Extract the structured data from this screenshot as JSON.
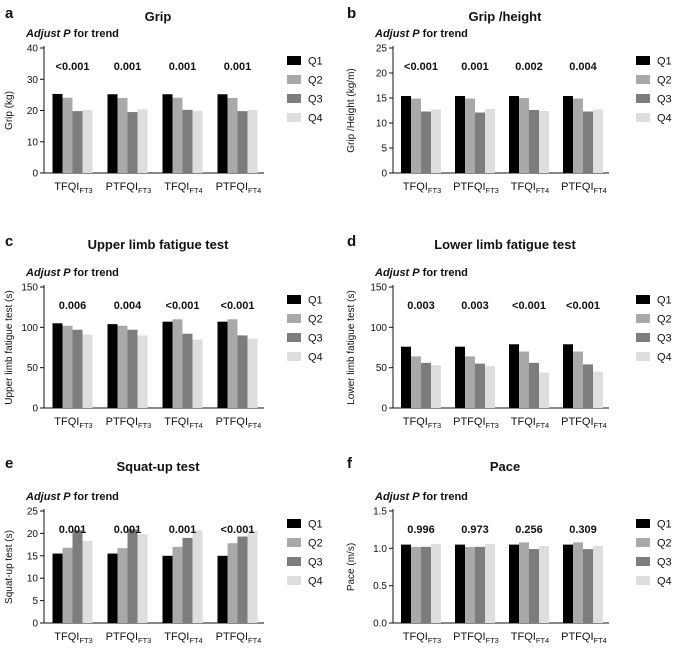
{
  "adjust_text": {
    "prefix": "Adjust",
    "p": "P",
    "suffix": "for trend"
  },
  "legend": {
    "labels": [
      "Q1",
      "Q2",
      "Q3",
      "Q4"
    ],
    "colors": [
      "#000000",
      "#a9a9a9",
      "#7d7d7d",
      "#dedede"
    ]
  },
  "chart_data": [
    {
      "id": "a",
      "letter": "a",
      "type": "bar",
      "title": "Grip",
      "ylabel": "Grip (kg)",
      "ylim": [
        0,
        40
      ],
      "yticks": [
        0,
        10,
        20,
        30,
        40
      ],
      "categories": [
        {
          "main": "TFQI",
          "sub": "FT3"
        },
        {
          "main": "PTFQI",
          "sub": "FT3"
        },
        {
          "main": "TFQI",
          "sub": "FT4"
        },
        {
          "main": "PTFQI",
          "sub": "FT4"
        }
      ],
      "p_values": [
        "<0.001",
        "0.001",
        "0.001",
        "0.001"
      ],
      "series": [
        {
          "name": "Q1",
          "values": [
            25.3,
            25.2,
            25.2,
            25.2
          ]
        },
        {
          "name": "Q2",
          "values": [
            24.1,
            24.0,
            24.1,
            24.0
          ]
        },
        {
          "name": "Q3",
          "values": [
            19.8,
            19.5,
            20.2,
            19.8
          ]
        },
        {
          "name": "Q4",
          "values": [
            20.2,
            20.4,
            19.9,
            20.1
          ]
        }
      ]
    },
    {
      "id": "b",
      "letter": "b",
      "type": "bar",
      "title": "Grip /height",
      "ylabel": "Grip /Height (kg/m)",
      "ylim": [
        0,
        25
      ],
      "yticks": [
        0,
        5,
        10,
        15,
        20,
        25
      ],
      "categories": [
        {
          "main": "TFQI",
          "sub": "FT3"
        },
        {
          "main": "PTFQI",
          "sub": "FT3"
        },
        {
          "main": "TFQI",
          "sub": "FT4"
        },
        {
          "main": "PTFQI",
          "sub": "FT4"
        }
      ],
      "p_values": [
        "<0.001",
        "0.001",
        "0.002",
        "0.004"
      ],
      "series": [
        {
          "name": "Q1",
          "values": [
            15.4,
            15.4,
            15.4,
            15.4
          ]
        },
        {
          "name": "Q2",
          "values": [
            14.9,
            14.9,
            15.0,
            14.9
          ]
        },
        {
          "name": "Q3",
          "values": [
            12.3,
            12.1,
            12.6,
            12.3
          ]
        },
        {
          "name": "Q4",
          "values": [
            12.7,
            12.8,
            12.4,
            12.7
          ]
        }
      ]
    },
    {
      "id": "c",
      "letter": "c",
      "type": "bar",
      "title": "Upper limb fatigue test",
      "ylabel": "Upper limb fatigue test (s)",
      "ylim": [
        0,
        150
      ],
      "yticks": [
        0,
        50,
        100,
        150
      ],
      "categories": [
        {
          "main": "TFQI",
          "sub": "FT3"
        },
        {
          "main": "PTFQI",
          "sub": "FT3"
        },
        {
          "main": "TFQI",
          "sub": "FT4"
        },
        {
          "main": "PTFQI",
          "sub": "FT4"
        }
      ],
      "p_values": [
        "0.006",
        "0.004",
        "<0.001",
        "<0.001"
      ],
      "series": [
        {
          "name": "Q1",
          "values": [
            105,
            104,
            107,
            107
          ]
        },
        {
          "name": "Q2",
          "values": [
            102,
            102,
            110,
            110
          ]
        },
        {
          "name": "Q3",
          "values": [
            97,
            97,
            92,
            90
          ]
        },
        {
          "name": "Q4",
          "values": [
            91,
            90,
            85,
            86
          ]
        }
      ]
    },
    {
      "id": "d",
      "letter": "d",
      "type": "bar",
      "title": "Lower limb fatigue test",
      "ylabel": "Lower limb fatigue test (s)",
      "ylim": [
        0,
        150
      ],
      "yticks": [
        0,
        50,
        100,
        150
      ],
      "categories": [
        {
          "main": "TFQI",
          "sub": "FT3"
        },
        {
          "main": "PTFQI",
          "sub": "FT3"
        },
        {
          "main": "TFQI",
          "sub": "FT4"
        },
        {
          "main": "PTFQI",
          "sub": "FT4"
        }
      ],
      "p_values": [
        "0.003",
        "0.003",
        "<0.001",
        "<0.001"
      ],
      "series": [
        {
          "name": "Q1",
          "values": [
            76,
            76,
            79,
            79
          ]
        },
        {
          "name": "Q2",
          "values": [
            64,
            64,
            70,
            70
          ]
        },
        {
          "name": "Q3",
          "values": [
            56,
            55,
            56,
            54
          ]
        },
        {
          "name": "Q4",
          "values": [
            53,
            52,
            44,
            45
          ]
        }
      ]
    },
    {
      "id": "e",
      "letter": "e",
      "type": "bar",
      "title": "Squat-up test",
      "ylabel": "Squat-up test (s)",
      "ylim": [
        0,
        25
      ],
      "yticks": [
        0,
        5,
        10,
        15,
        20,
        25
      ],
      "categories": [
        {
          "main": "TFQI",
          "sub": "FT3"
        },
        {
          "main": "PTFQI",
          "sub": "FT3"
        },
        {
          "main": "TFQI",
          "sub": "FT4"
        },
        {
          "main": "PTFQI",
          "sub": "FT4"
        }
      ],
      "p_values": [
        "0.001",
        "0.001",
        "0.001",
        "<0.001"
      ],
      "series": [
        {
          "name": "Q1",
          "values": [
            15.5,
            15.5,
            15.0,
            15.0
          ]
        },
        {
          "name": "Q2",
          "values": [
            16.8,
            16.7,
            17.0,
            17.8
          ]
        },
        {
          "name": "Q3",
          "values": [
            20.7,
            20.9,
            19.0,
            19.3
          ]
        },
        {
          "name": "Q4",
          "values": [
            18.3,
            19.8,
            20.7,
            20.6
          ]
        }
      ]
    },
    {
      "id": "f",
      "letter": "f",
      "type": "bar",
      "title": "Pace",
      "ylabel": "Pace (m/s)",
      "ylim": [
        0,
        1.5
      ],
      "yticks": [
        0.0,
        0.5,
        1.0,
        1.5
      ],
      "categories": [
        {
          "main": "TFQI",
          "sub": "FT3"
        },
        {
          "main": "PTFQI",
          "sub": "FT3"
        },
        {
          "main": "TFQI",
          "sub": "FT4"
        },
        {
          "main": "PTFQI",
          "sub": "FT4"
        }
      ],
      "p_values": [
        "0.996",
        "0.973",
        "0.256",
        "0.309"
      ],
      "series": [
        {
          "name": "Q1",
          "values": [
            1.05,
            1.05,
            1.05,
            1.05
          ]
        },
        {
          "name": "Q2",
          "values": [
            1.02,
            1.02,
            1.08,
            1.08
          ]
        },
        {
          "name": "Q3",
          "values": [
            1.02,
            1.02,
            0.99,
            0.99
          ]
        },
        {
          "name": "Q4",
          "values": [
            1.06,
            1.06,
            1.03,
            1.03
          ]
        }
      ]
    }
  ]
}
